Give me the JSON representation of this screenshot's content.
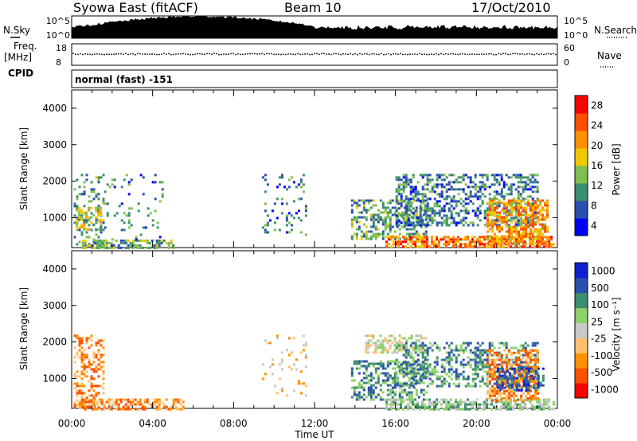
{
  "header": {
    "station": "Syowa East (fitACF)",
    "beam": "Beam 10",
    "date": "17/Oct/2010"
  },
  "status_panels": {
    "nsky_label": "N.Sky",
    "nsky_ticks": [
      "10^5",
      "10^0"
    ],
    "nsearch_label": "N.Search",
    "nsearch_ticks": [
      "10^5",
      "10^0"
    ],
    "freq_label": "Freq.",
    "freq_unit": "[MHz]",
    "freq_ticks": [
      "18",
      "8"
    ],
    "nave_label": "Nave",
    "nave_ticks": [
      "60",
      "0"
    ],
    "cpid_label": "CPID",
    "cpid_text": "normal (fast) -151"
  },
  "colors": {
    "power": [
      "#0000ff",
      "#2b4fb0",
      "#3c8f6e",
      "#7fbf4f",
      "#f0c800",
      "#ff9000",
      "#ff5000",
      "#ff0000"
    ],
    "velocity": [
      "#ff0000",
      "#ff5000",
      "#ff9000",
      "#ffc070",
      "#c8c8c8",
      "#8ed06a",
      "#3c8f6e",
      "#2b4fb0",
      "#1020d0"
    ]
  },
  "chart_data": [
    {
      "type": "heatmap",
      "name": "power",
      "xlabel": "",
      "ylabel": "Slant Range [km]",
      "ylim": [
        180,
        4500
      ],
      "xlim_hours": [
        0,
        24
      ],
      "y_ticks": [
        "4000",
        "3000",
        "2000",
        "1000"
      ],
      "y_tick_values": [
        4000,
        3000,
        2000,
        1000
      ],
      "colorbar_label": "Power [dB]",
      "colorbar_ticks": [
        "28",
        "24",
        "20",
        "16",
        "12",
        "8",
        "4"
      ],
      "colorbar_range": [
        0,
        30
      ],
      "regions": [
        {
          "t0": 0.1,
          "t1": 1.6,
          "r0": 180,
          "r1": 2200,
          "density": 0.28,
          "level": 10
        },
        {
          "t0": 0.2,
          "t1": 1.4,
          "r0": 700,
          "r1": 1300,
          "density": 0.55,
          "level": 14
        },
        {
          "t0": 0.5,
          "t1": 5.0,
          "r0": 180,
          "r1": 400,
          "density": 0.6,
          "level": 12
        },
        {
          "t0": 1.6,
          "t1": 4.5,
          "r0": 400,
          "r1": 2200,
          "density": 0.08,
          "level": 8
        },
        {
          "t0": 9.4,
          "t1": 11.6,
          "r0": 500,
          "r1": 2200,
          "density": 0.12,
          "level": 8
        },
        {
          "t0": 13.8,
          "t1": 17.5,
          "r0": 400,
          "r1": 1500,
          "density": 0.5,
          "level": 10
        },
        {
          "t0": 15.5,
          "t1": 23.8,
          "r0": 180,
          "r1": 500,
          "density": 0.7,
          "level": 22
        },
        {
          "t0": 16.0,
          "t1": 23.0,
          "r0": 800,
          "r1": 2200,
          "density": 0.45,
          "level": 8
        },
        {
          "t0": 20.5,
          "t1": 23.5,
          "r0": 300,
          "r1": 1500,
          "density": 0.65,
          "level": 20
        }
      ]
    },
    {
      "type": "heatmap",
      "name": "velocity",
      "xlabel": "Time UT",
      "ylabel": "Slant Range [km]",
      "ylim": [
        180,
        4500
      ],
      "xlim_hours": [
        0,
        24
      ],
      "x_ticks": [
        "00:00",
        "04:00",
        "08:00",
        "12:00",
        "16:00",
        "20:00",
        "00:00"
      ],
      "x_tick_hours": [
        0,
        4,
        8,
        12,
        16,
        20,
        24
      ],
      "y_ticks": [
        "4000",
        "3000",
        "2000",
        "1000"
      ],
      "y_tick_values": [
        4000,
        3000,
        2000,
        1000
      ],
      "colorbar_label": "Velocity [m s⁻¹]",
      "colorbar_ticks": [
        "1000",
        "500",
        "100",
        "25",
        "-25",
        "-100",
        "-500",
        "-1000"
      ],
      "regions": [
        {
          "t0": 0.1,
          "t1": 1.6,
          "r0": 180,
          "r1": 2200,
          "density": 0.35,
          "level": 2
        },
        {
          "t0": 0.5,
          "t1": 5.5,
          "r0": 180,
          "r1": 450,
          "density": 0.55,
          "level": 2
        },
        {
          "t0": 9.4,
          "t1": 11.6,
          "r0": 500,
          "r1": 2200,
          "density": 0.12,
          "level": 3
        },
        {
          "t0": 13.8,
          "t1": 17.5,
          "r0": 400,
          "r1": 1500,
          "density": 0.5,
          "level": 6
        },
        {
          "t0": 14.5,
          "t1": 17.5,
          "r0": 1700,
          "r1": 2200,
          "density": 0.5,
          "level": 4
        },
        {
          "t0": 16.0,
          "t1": 23.0,
          "r0": 800,
          "r1": 2000,
          "density": 0.45,
          "level": 6
        },
        {
          "t0": 15.5,
          "t1": 23.8,
          "r0": 180,
          "r1": 450,
          "density": 0.65,
          "level": 5
        },
        {
          "t0": 20.5,
          "t1": 23.0,
          "r0": 400,
          "r1": 1800,
          "density": 0.6,
          "level": 2
        },
        {
          "t0": 21.0,
          "t1": 23.3,
          "r0": 700,
          "r1": 1300,
          "density": 0.5,
          "level": 7
        }
      ]
    }
  ]
}
